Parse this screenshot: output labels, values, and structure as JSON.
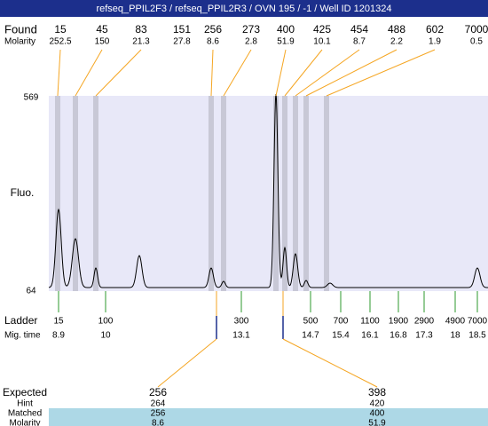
{
  "header": {
    "title": "refseq_PPIL2F3 / refseq_PPIL2R3 / OVN 195 / -1 / Well ID 1201324"
  },
  "found": {
    "label": "Found",
    "molarity_label": "Molarity",
    "peaks": [
      {
        "size": 15,
        "molarity": 252.5
      },
      {
        "size": 45,
        "molarity": 150
      },
      {
        "size": 83,
        "molarity": 21.3
      },
      {
        "size": 151,
        "molarity": 27.8
      },
      {
        "size": 256,
        "molarity": 8.6
      },
      {
        "size": 273,
        "molarity": 2.8
      },
      {
        "size": 400,
        "molarity": 51.9
      },
      {
        "size": 425,
        "molarity": 10.1
      },
      {
        "size": 454,
        "molarity": 8.7
      },
      {
        "size": 488,
        "molarity": 2.2
      },
      {
        "size": 602,
        "molarity": 1.9
      },
      {
        "size": 7000,
        "molarity": 0.5
      }
    ]
  },
  "y_axis": {
    "label": "Fluo.",
    "max": 569,
    "min": 64
  },
  "ladder": {
    "label": "Ladder",
    "mig_time_label": "Mig. time",
    "marks": [
      {
        "size": 15,
        "time": 8.9
      },
      {
        "size": 100,
        "time": 10
      },
      {
        "size": 300,
        "time": 13.1
      },
      {
        "size": 500,
        "time": 14.7
      },
      {
        "size": 700,
        "time": 15.4
      },
      {
        "size": 1100,
        "time": 16.1
      },
      {
        "size": 1900,
        "time": 16.8
      },
      {
        "size": 2900,
        "time": 17.3
      },
      {
        "size": 4900,
        "time": 18
      },
      {
        "size": 7000,
        "time": 18.5
      }
    ]
  },
  "expected": {
    "labels": [
      "Expected",
      "Hint",
      "Matched",
      "Molarity"
    ],
    "columns": [
      {
        "expected": 256,
        "hint": 264,
        "matched": 256,
        "molarity": 8.6
      },
      {
        "expected": 398,
        "hint": 420,
        "matched": 400,
        "molarity": 51.9
      }
    ]
  }
}
